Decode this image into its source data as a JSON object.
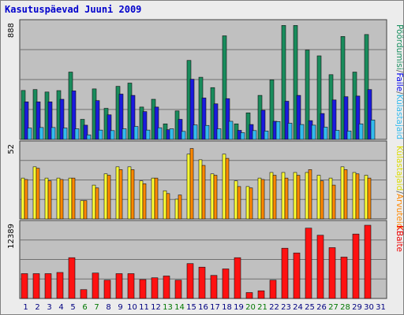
{
  "title": "Kasutuspäevad Juuni 2009",
  "chart_data": [
    {
      "type": "bar",
      "panel": "top",
      "ylabel_max": "888",
      "ymax": 888,
      "categories": [
        "1",
        "2",
        "3",
        "4",
        "5",
        "6",
        "7",
        "8",
        "9",
        "10",
        "11",
        "12",
        "13",
        "14",
        "15",
        "16",
        "17",
        "18",
        "19",
        "20",
        "21",
        "22",
        "23",
        "24",
        "25",
        "26",
        "27",
        "28",
        "29",
        "30",
        "31"
      ],
      "legend": [
        {
          "text": "Pöördumisi",
          "color": "#199060"
        },
        {
          "text": "/",
          "color": "#606060"
        },
        {
          "text": "Faile",
          "color": "#0000ee"
        },
        {
          "text": "/",
          "color": "#606060"
        },
        {
          "text": "Külastajaid",
          "color": "#33bbee"
        }
      ],
      "series": [
        {
          "name": "Pöördumisi",
          "color": "#198c5c",
          "values": [
            378,
            385,
            366,
            377,
            520,
            155,
            390,
            240,
            410,
            435,
            250,
            310,
            120,
            220,
            610,
            480,
            400,
            800,
            120,
            205,
            340,
            460,
            880,
            880,
            690,
            645,
            500,
            795,
            520,
            810,
            0
          ]
        },
        {
          "name": "Faile",
          "color": "#1a1add",
          "values": [
            290,
            290,
            290,
            310,
            375,
            110,
            300,
            190,
            350,
            340,
            215,
            250,
            75,
            155,
            465,
            320,
            275,
            315,
            70,
            115,
            225,
            140,
            295,
            340,
            145,
            200,
            305,
            330,
            335,
            385,
            0
          ]
        },
        {
          "name": "Külastajaid",
          "color": "#33bbee",
          "values": [
            88,
            92,
            92,
            88,
            82,
            35,
            72,
            68,
            82,
            100,
            72,
            90,
            82,
            62,
            112,
            108,
            82,
            140,
            52,
            68,
            65,
            138,
            125,
            115,
            110,
            95,
            70,
            65,
            120,
            150,
            0
          ]
        }
      ]
    },
    {
      "type": "bar",
      "panel": "middle",
      "ylabel_max": "52",
      "ymax": 52,
      "categories": [
        "1",
        "2",
        "3",
        "4",
        "5",
        "6",
        "7",
        "8",
        "9",
        "10",
        "11",
        "12",
        "13",
        "14",
        "15",
        "16",
        "17",
        "18",
        "19",
        "20",
        "21",
        "22",
        "23",
        "24",
        "25",
        "26",
        "27",
        "28",
        "29",
        "30",
        "31"
      ],
      "legend": [
        {
          "text": "Külastajaid",
          "color": "#dddd00"
        },
        {
          "text": "/",
          "color": "#606060"
        },
        {
          "text": "Arvuteid",
          "color": "#ff8800"
        }
      ],
      "series": [
        {
          "name": "Külastajaid",
          "color": "#ffff33",
          "values": [
            29,
            37,
            29,
            29,
            29,
            13,
            24,
            32,
            37,
            37,
            27,
            29,
            20,
            14,
            46,
            42,
            32,
            46,
            27,
            23,
            29,
            33,
            33,
            33,
            33,
            31,
            29,
            37,
            33,
            31,
            0
          ]
        },
        {
          "name": "Arvuteid",
          "color": "#ff8800",
          "values": [
            28,
            36,
            27,
            28,
            29,
            13,
            22,
            31,
            35,
            35,
            25,
            29,
            18,
            17,
            50,
            38,
            31,
            43,
            23,
            22,
            28,
            31,
            29,
            31,
            35,
            27,
            24,
            35,
            32,
            29,
            0
          ]
        }
      ]
    },
    {
      "type": "bar",
      "panel": "bottom",
      "ylabel_max": "12389",
      "ymax": 12389,
      "categories": [
        "1",
        "2",
        "3",
        "4",
        "5",
        "6",
        "7",
        "8",
        "9",
        "10",
        "11",
        "12",
        "13",
        "14",
        "15",
        "16",
        "17",
        "18",
        "19",
        "20",
        "21",
        "22",
        "23",
        "24",
        "25",
        "26",
        "27",
        "28",
        "29",
        "30",
        "31"
      ],
      "legend": [
        {
          "text": "KBaite",
          "color": "#ee0000"
        }
      ],
      "series": [
        {
          "name": "KBaite",
          "color": "#ff1111",
          "values": [
            4200,
            4200,
            4200,
            4400,
            6900,
            1500,
            4300,
            3100,
            4200,
            4200,
            3200,
            3500,
            3800,
            3100,
            5900,
            5300,
            3900,
            5000,
            6900,
            1000,
            1300,
            3100,
            8500,
            7700,
            11900,
            10700,
            8600,
            7000,
            10900,
            12389,
            0
          ]
        }
      ]
    }
  ],
  "weekend_days": [
    "6",
    "7",
    "13",
    "14",
    "20",
    "21",
    "27",
    "28"
  ],
  "colors": {
    "panel_bg": "#c0c0c0",
    "grid": "#707070",
    "day_normal": "#000080",
    "day_weekend": "#007700"
  }
}
